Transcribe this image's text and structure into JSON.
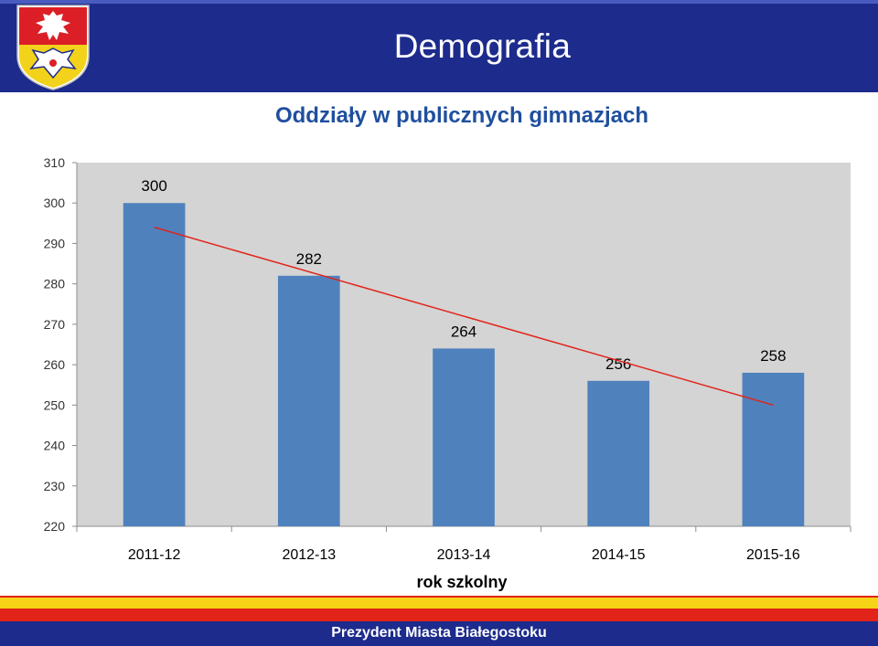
{
  "header": {
    "title": "Demografia",
    "logo_icon": "bialystok-coat-of-arms-icon"
  },
  "colors": {
    "header_bg": "#1c2b8c",
    "bar": "#4f81bd",
    "plot_bg": "#d4d4d4",
    "trendline": "#e2231a",
    "title": "#1f4f9e",
    "band_yellow": "#f6d316",
    "band_red": "#e2231a"
  },
  "chart_data": {
    "type": "bar",
    "title": "Oddziały w publicznych gimnazjach",
    "xlabel": "rok szkolny",
    "ylabel": "",
    "categories": [
      "2011-12",
      "2012-13",
      "2013-14",
      "2014-15",
      "2015-16"
    ],
    "values": [
      300,
      282,
      264,
      256,
      258
    ],
    "data_labels": [
      "300",
      "282",
      "264",
      "256",
      "258"
    ],
    "ylim": [
      220,
      310
    ],
    "yticks": [
      "220",
      "230",
      "240",
      "250",
      "260",
      "270",
      "280",
      "290",
      "300",
      "310"
    ],
    "trendline": {
      "type": "linear",
      "color": "#e2231a"
    },
    "grid": false,
    "legend": "none"
  },
  "footer": {
    "text": "Prezydent Miasta Białegostoku"
  }
}
